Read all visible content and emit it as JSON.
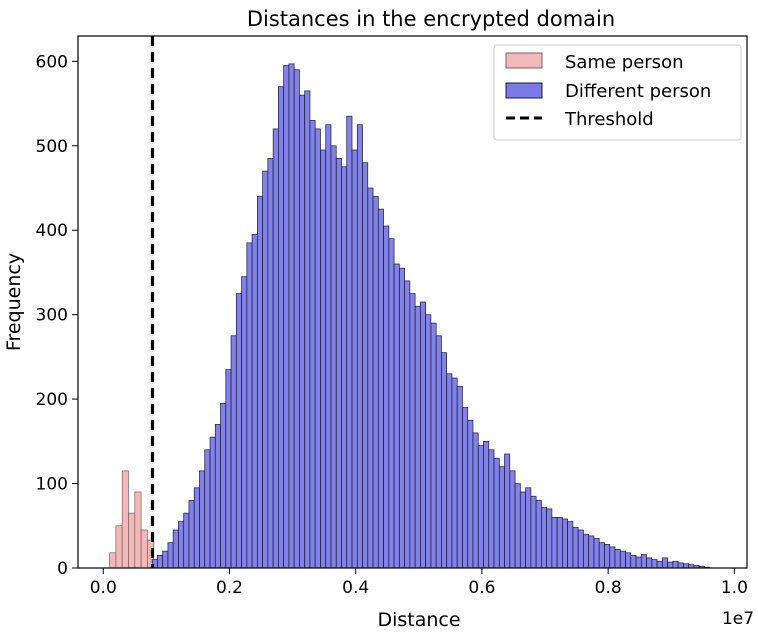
{
  "chart_data": {
    "type": "bar",
    "title": "Distances in the encrypted domain",
    "xlabel": "Distance",
    "ylabel": "Frequency",
    "x_offset_label": "1e7",
    "xlim": [
      -0.04,
      1.02
    ],
    "ylim": [
      0,
      630
    ],
    "xticks": [
      0.0,
      0.2,
      0.4,
      0.6,
      0.8,
      1.0
    ],
    "xtick_labels": [
      "0.0",
      "0.2",
      "0.4",
      "0.6",
      "0.8",
      "1.0"
    ],
    "yticks": [
      0,
      100,
      200,
      300,
      400,
      500,
      600
    ],
    "ytick_labels": [
      "0",
      "100",
      "200",
      "300",
      "400",
      "500",
      "600"
    ],
    "legend_position": "top-right",
    "threshold": {
      "name": "Threshold",
      "x": 0.078,
      "style": "dashed",
      "color": "#000000"
    },
    "series": [
      {
        "name": "Same person",
        "color": "#f4b8b8",
        "edge_color": "#7a6060",
        "bin_width": 0.01,
        "bins": [
          [
            0.01,
            18
          ],
          [
            0.02,
            50
          ],
          [
            0.03,
            115
          ],
          [
            0.04,
            65
          ],
          [
            0.05,
            90
          ],
          [
            0.06,
            45
          ],
          [
            0.07,
            33
          ]
        ]
      },
      {
        "name": "Different person",
        "color": "#7a7ae6",
        "edge_color": "#1a1a3a",
        "bin_width": 0.00833,
        "bins": [
          [
            0.0775,
            10
          ],
          [
            0.0858,
            15
          ],
          [
            0.0942,
            20
          ],
          [
            0.1025,
            30
          ],
          [
            0.1108,
            45
          ],
          [
            0.1192,
            55
          ],
          [
            0.1275,
            65
          ],
          [
            0.1358,
            80
          ],
          [
            0.1442,
            95
          ],
          [
            0.1525,
            115
          ],
          [
            0.1608,
            140
          ],
          [
            0.1692,
            155
          ],
          [
            0.1775,
            170
          ],
          [
            0.1858,
            195
          ],
          [
            0.1942,
            235
          ],
          [
            0.2025,
            275
          ],
          [
            0.2108,
            325
          ],
          [
            0.2192,
            345
          ],
          [
            0.2275,
            385
          ],
          [
            0.2358,
            395
          ],
          [
            0.2442,
            440
          ],
          [
            0.2525,
            470
          ],
          [
            0.2608,
            485
          ],
          [
            0.2692,
            520
          ],
          [
            0.2775,
            570
          ],
          [
            0.2858,
            595
          ],
          [
            0.2942,
            597
          ],
          [
            0.3025,
            590
          ],
          [
            0.3108,
            560
          ],
          [
            0.3192,
            565
          ],
          [
            0.3275,
            530
          ],
          [
            0.3358,
            520
          ],
          [
            0.3442,
            495
          ],
          [
            0.3525,
            525
          ],
          [
            0.3608,
            500
          ],
          [
            0.3692,
            485
          ],
          [
            0.3775,
            475
          ],
          [
            0.3858,
            535
          ],
          [
            0.3942,
            495
          ],
          [
            0.4025,
            525
          ],
          [
            0.4108,
            480
          ],
          [
            0.4192,
            450
          ],
          [
            0.4275,
            440
          ],
          [
            0.4358,
            425
          ],
          [
            0.4442,
            405
          ],
          [
            0.4525,
            390
          ],
          [
            0.4608,
            360
          ],
          [
            0.4692,
            355
          ],
          [
            0.4775,
            340
          ],
          [
            0.4858,
            325
          ],
          [
            0.4942,
            310
          ],
          [
            0.5025,
            315
          ],
          [
            0.5108,
            300
          ],
          [
            0.5192,
            290
          ],
          [
            0.5275,
            275
          ],
          [
            0.5358,
            255
          ],
          [
            0.5442,
            230
          ],
          [
            0.5525,
            225
          ],
          [
            0.5608,
            215
          ],
          [
            0.5692,
            190
          ],
          [
            0.5775,
            175
          ],
          [
            0.5858,
            160
          ],
          [
            0.5942,
            145
          ],
          [
            0.6025,
            150
          ],
          [
            0.6108,
            140
          ],
          [
            0.6192,
            130
          ],
          [
            0.6275,
            120
          ],
          [
            0.6358,
            135
          ],
          [
            0.6442,
            115
          ],
          [
            0.6525,
            100
          ],
          [
            0.6608,
            90
          ],
          [
            0.6692,
            95
          ],
          [
            0.6775,
            85
          ],
          [
            0.6858,
            80
          ],
          [
            0.6942,
            72
          ],
          [
            0.7025,
            70
          ],
          [
            0.7108,
            60
          ],
          [
            0.7192,
            60
          ],
          [
            0.7275,
            58
          ],
          [
            0.7358,
            55
          ],
          [
            0.7442,
            48
          ],
          [
            0.7525,
            45
          ],
          [
            0.7608,
            40
          ],
          [
            0.7692,
            38
          ],
          [
            0.7775,
            35
          ],
          [
            0.7858,
            30
          ],
          [
            0.7942,
            28
          ],
          [
            0.8025,
            25
          ],
          [
            0.8108,
            22
          ],
          [
            0.8192,
            20
          ],
          [
            0.8275,
            18
          ],
          [
            0.8358,
            15
          ],
          [
            0.8442,
            13
          ],
          [
            0.8525,
            16
          ],
          [
            0.8608,
            12
          ],
          [
            0.8692,
            10
          ],
          [
            0.8775,
            8
          ],
          [
            0.8858,
            12
          ],
          [
            0.8942,
            7
          ],
          [
            0.9025,
            8
          ],
          [
            0.9108,
            6
          ],
          [
            0.9192,
            5
          ],
          [
            0.9275,
            4
          ],
          [
            0.9358,
            3
          ],
          [
            0.9442,
            2
          ],
          [
            0.9525,
            1
          ]
        ]
      }
    ]
  }
}
